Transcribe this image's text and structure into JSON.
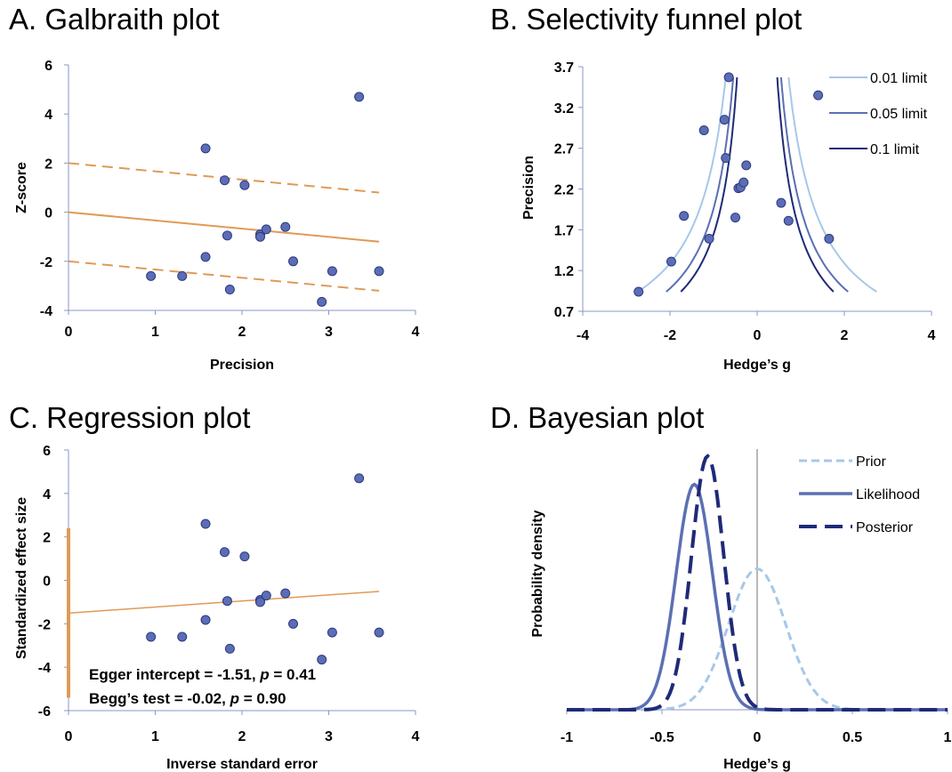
{
  "colors": {
    "point": "#5b6db7",
    "point_stroke": "#2e3a7c",
    "orange": "#e09a56",
    "axis": "#8a96c8",
    "light_blue": "#a6c8e8",
    "mid_blue": "#5b6fb3",
    "dark_blue": "#1f2a78",
    "zero_line": "#a0a0a0"
  },
  "chart_data": [
    {
      "id": "A",
      "type": "scatter",
      "title": "A. Galbraith plot",
      "xlabel": "Precision",
      "ylabel": "Z-score",
      "xlim": [
        0,
        4
      ],
      "ylim": [
        -4,
        6
      ],
      "xticks": [
        "0",
        "1",
        "2",
        "3",
        "4"
      ],
      "yticks": [
        "-4",
        "-2",
        "0",
        "2",
        "4",
        "6"
      ],
      "points": [
        [
          0.95,
          -2.6
        ],
        [
          1.31,
          -2.6
        ],
        [
          1.58,
          -1.82
        ],
        [
          1.58,
          2.6
        ],
        [
          1.8,
          1.3
        ],
        [
          1.83,
          -0.95
        ],
        [
          1.86,
          -3.15
        ],
        [
          2.03,
          1.1
        ],
        [
          2.21,
          -0.9
        ],
        [
          2.21,
          -1.0
        ],
        [
          2.28,
          -0.7
        ],
        [
          2.5,
          -0.6
        ],
        [
          2.59,
          -2.0
        ],
        [
          2.92,
          -3.65
        ],
        [
          3.04,
          -2.4
        ],
        [
          3.35,
          4.7
        ],
        [
          3.58,
          -2.4
        ]
      ],
      "lines": [
        {
          "x": [
            0,
            3.58
          ],
          "y": [
            0,
            -1.2
          ],
          "style": "solid"
        },
        {
          "x": [
            0,
            3.58
          ],
          "y": [
            2.0,
            0.8
          ],
          "style": "dashed"
        },
        {
          "x": [
            0,
            3.58
          ],
          "y": [
            -2.0,
            -3.2
          ],
          "style": "dashed"
        }
      ]
    },
    {
      "id": "B",
      "type": "scatter",
      "title": "B. Selectivity funnel plot",
      "xlabel": "Hedge’s g",
      "ylabel": "Precision",
      "xlim": [
        -4,
        4
      ],
      "ylim": [
        0.7,
        3.7
      ],
      "xticks": [
        "-4",
        "-2",
        "0",
        "2",
        "4"
      ],
      "yticks": [
        "0.7",
        "1.2",
        "1.7",
        "2.2",
        "2.7",
        "3.2",
        "3.7"
      ],
      "points": [
        [
          -2.72,
          0.94
        ],
        [
          -1.97,
          1.31
        ],
        [
          -1.68,
          1.87
        ],
        [
          -1.22,
          2.92
        ],
        [
          -1.1,
          1.59
        ],
        [
          -0.75,
          3.05
        ],
        [
          -0.72,
          2.58
        ],
        [
          -0.65,
          3.57
        ],
        [
          -0.5,
          1.85
        ],
        [
          -0.43,
          2.21
        ],
        [
          -0.38,
          2.22
        ],
        [
          -0.31,
          2.28
        ],
        [
          -0.25,
          2.49
        ],
        [
          0.55,
          2.03
        ],
        [
          0.72,
          1.81
        ],
        [
          1.4,
          3.35
        ],
        [
          1.65,
          1.59
        ]
      ],
      "series": [
        {
          "name": "0.01 limit",
          "z": 2.576
        },
        {
          "name": "0.05 limit",
          "z": 1.96
        },
        {
          "name": "0.1 limit",
          "z": 1.645
        }
      ],
      "curve_precision_range": [
        0.94,
        3.57
      ]
    },
    {
      "id": "C",
      "type": "scatter",
      "title": "C. Regression plot",
      "xlabel": "Inverse standard error",
      "ylabel": "Standardized effect size",
      "xlim": [
        0,
        4
      ],
      "ylim": [
        -6,
        6
      ],
      "xticks": [
        "0",
        "1",
        "2",
        "3",
        "4"
      ],
      "yticks": [
        "-6",
        "-4",
        "-2",
        "0",
        "2",
        "4",
        "6"
      ],
      "points": [
        [
          0.95,
          -2.6
        ],
        [
          1.31,
          -2.6
        ],
        [
          1.58,
          -1.82
        ],
        [
          1.58,
          2.6
        ],
        [
          1.8,
          1.3
        ],
        [
          1.83,
          -0.95
        ],
        [
          1.86,
          -3.15
        ],
        [
          2.03,
          1.1
        ],
        [
          2.21,
          -0.9
        ],
        [
          2.21,
          -1.0
        ],
        [
          2.28,
          -0.7
        ],
        [
          2.5,
          -0.6
        ],
        [
          2.59,
          -2.0
        ],
        [
          2.92,
          -3.65
        ],
        [
          3.04,
          -2.4
        ],
        [
          3.35,
          4.7
        ],
        [
          3.58,
          -2.4
        ]
      ],
      "regression_line": {
        "x": [
          0,
          3.58
        ],
        "y": [
          -1.51,
          -0.51
        ]
      },
      "intercept_interval": [
        -5.4,
        2.4
      ],
      "annotation_line1": [
        "Egger intercept = -1.51, ",
        "p",
        " = 0.41"
      ],
      "annotation_line2": [
        "Begg’s test = -0.02, ",
        "p",
        " = 0.90"
      ]
    },
    {
      "id": "D",
      "type": "line",
      "title": "D. Bayesian plot",
      "xlabel": "Hedge’s g",
      "ylabel": "Probability density",
      "xlim": [
        -1,
        1
      ],
      "xticks": [
        "-1",
        "-0.5",
        "0",
        "0.5",
        "1"
      ],
      "series": [
        {
          "name": "Prior",
          "mean": 0.0,
          "sd": 0.15,
          "peak": 1.0,
          "style": "dashed-light"
        },
        {
          "name": "Likelihood",
          "mean": -0.33,
          "sd": 0.095,
          "peak": 1.6,
          "style": "solid"
        },
        {
          "name": "Posterior",
          "mean": -0.26,
          "sd": 0.085,
          "peak": 1.8,
          "style": "dashed-dark"
        }
      ],
      "ymax": 1.85
    }
  ]
}
